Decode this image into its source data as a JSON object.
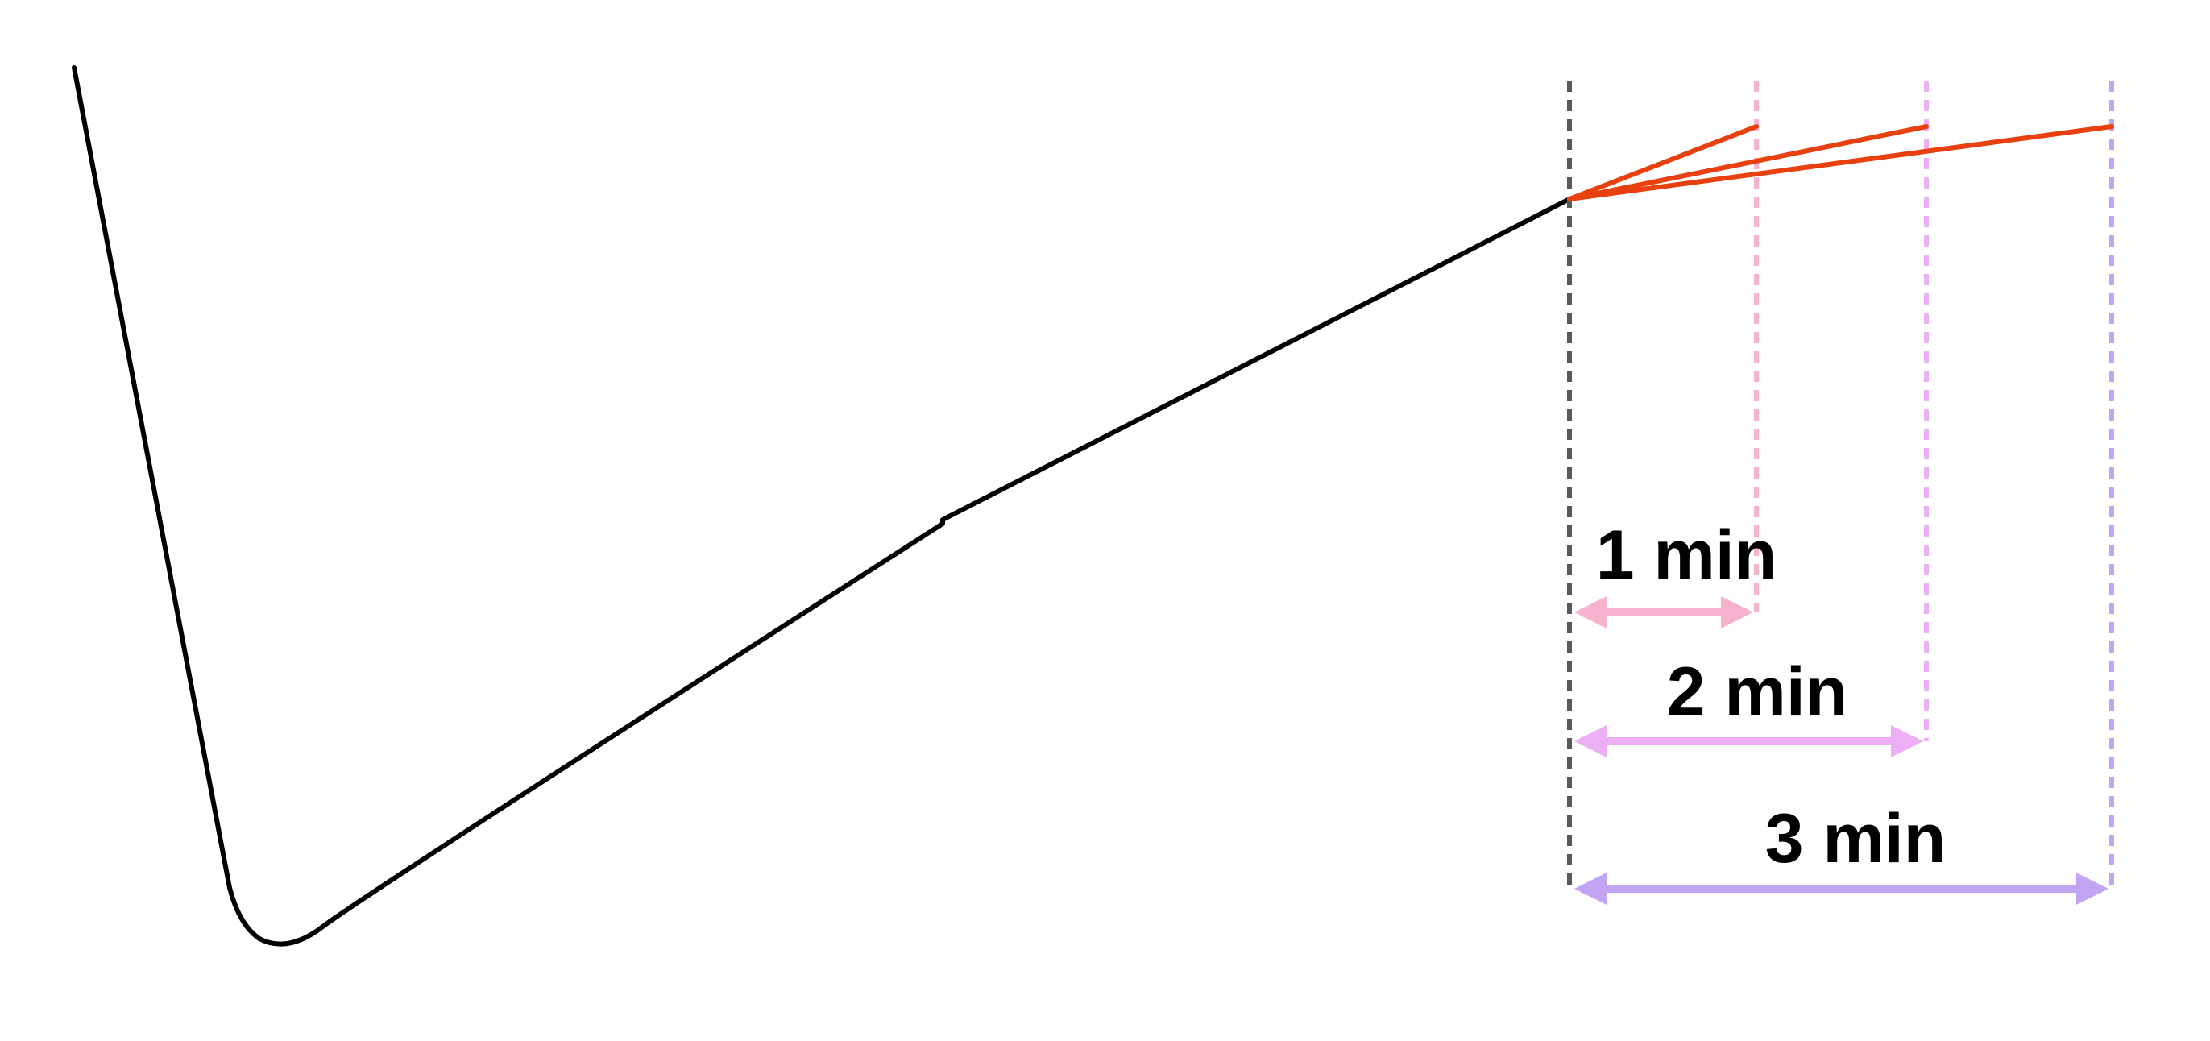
{
  "colors": {
    "curve": "#000000",
    "extrapolation": "#e8400f",
    "reference_line": "#595959",
    "interval_1": "#f7b3cd",
    "interval_2": "#ecaff6",
    "interval_3": "#c2a5f2"
  },
  "intervals": [
    {
      "label": "1 min",
      "color_key": "interval_1"
    },
    {
      "label": "2 min",
      "color_key": "interval_2"
    },
    {
      "label": "3 min",
      "color_key": "interval_3"
    }
  ]
}
